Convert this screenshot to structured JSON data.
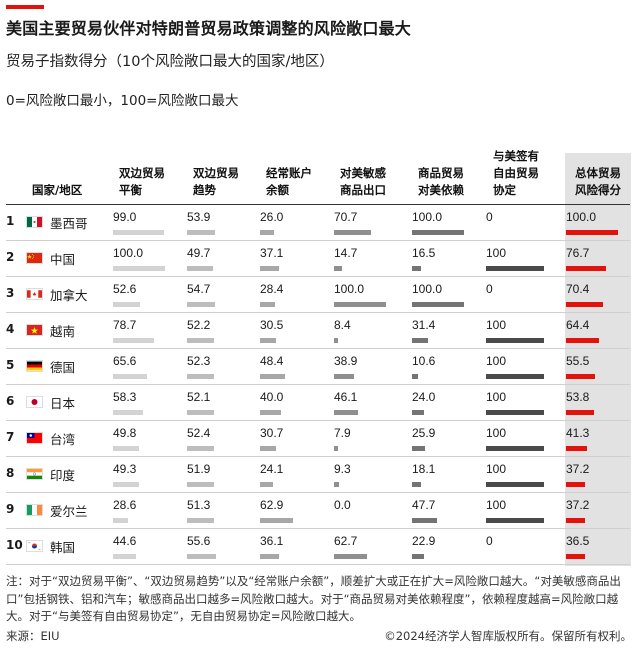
{
  "title": "美国主要贸易伙伴对特朗普贸易政策调整的风险敞口最大",
  "subtitle": "贸易子指数得分（10个风险敞口最大的国家/地区）",
  "scale_note": "0=风险敞口最小，100=风险敞口最大",
  "headers": {
    "country": "国家/地区",
    "c1": "双边贸易\n平衡",
    "c2": "双边贸易\n趋势",
    "c3": "经常账户\n余额",
    "c4": "对美敏感\n商品出口",
    "c5": "商品贸易\n对美依赖",
    "c6": "与美签有\n自由贸易\n协定",
    "c7": "总体贸易\n风险得分"
  },
  "colors": {
    "accent": "#e3120b",
    "bar_grey": [
      "#d3d3d3",
      "#bdbdbd",
      "#a7a7a7",
      "#8f8f8f",
      "#747474",
      "#4a4a4a",
      "#3a3a3a"
    ]
  },
  "chart_data": {
    "type": "table",
    "title": "美国主要贸易伙伴对特朗普贸易政策调整的风险敞口最大",
    "subtitle": "贸易子指数得分（10个风险敞口最大的国家/地区）",
    "scale": [
      0,
      100
    ],
    "columns": [
      "双边贸易平衡",
      "双边贸易趋势",
      "经常账户余额",
      "对美敏感商品出口",
      "商品贸易对美依赖",
      "与美签有自由贸易协定",
      "总体贸易风险得分"
    ],
    "rows": [
      {
        "rank": "1",
        "flag": "mexico-flag-icon",
        "name": "墨西哥",
        "values": [
          99.0,
          53.9,
          26.0,
          70.7,
          100.0,
          0,
          100.0
        ],
        "labels": [
          "99.0",
          "53.9",
          "26.0",
          "70.7",
          "100.0",
          "0",
          "100.0"
        ]
      },
      {
        "rank": "2",
        "flag": "china-flag-icon",
        "name": "中国",
        "values": [
          100.0,
          49.7,
          37.1,
          14.7,
          16.5,
          100,
          76.7
        ],
        "labels": [
          "100.0",
          "49.7",
          "37.1",
          "14.7",
          "16.5",
          "100",
          "76.7"
        ]
      },
      {
        "rank": "3",
        "flag": "canada-flag-icon",
        "name": "加拿大",
        "values": [
          52.6,
          54.7,
          28.4,
          100.0,
          100.0,
          0,
          70.4
        ],
        "labels": [
          "52.6",
          "54.7",
          "28.4",
          "100.0",
          "100.0",
          "0",
          "70.4"
        ]
      },
      {
        "rank": "4",
        "flag": "vietnam-flag-icon",
        "name": "越南",
        "values": [
          78.7,
          52.2,
          30.5,
          8.4,
          31.4,
          100,
          64.4
        ],
        "labels": [
          "78.7",
          "52.2",
          "30.5",
          "8.4",
          "31.4",
          "100",
          "64.4"
        ]
      },
      {
        "rank": "5",
        "flag": "germany-flag-icon",
        "name": "德国",
        "values": [
          65.6,
          52.3,
          48.4,
          38.9,
          10.6,
          100,
          55.5
        ],
        "labels": [
          "65.6",
          "52.3",
          "48.4",
          "38.9",
          "10.6",
          "100",
          "55.5"
        ]
      },
      {
        "rank": "6",
        "flag": "japan-flag-icon",
        "name": "日本",
        "values": [
          58.3,
          52.1,
          40.0,
          46.1,
          24.0,
          100,
          53.8
        ],
        "labels": [
          "58.3",
          "52.1",
          "40.0",
          "46.1",
          "24.0",
          "100",
          "53.8"
        ]
      },
      {
        "rank": "7",
        "flag": "taiwan-flag-icon",
        "name": "台湾",
        "values": [
          49.8,
          52.4,
          30.7,
          7.9,
          25.9,
          100,
          41.3
        ],
        "labels": [
          "49.8",
          "52.4",
          "30.7",
          "7.9",
          "25.9",
          "100",
          "41.3"
        ]
      },
      {
        "rank": "8",
        "flag": "india-flag-icon",
        "name": "印度",
        "values": [
          49.3,
          51.9,
          24.1,
          9.3,
          18.1,
          100,
          37.2
        ],
        "labels": [
          "49.3",
          "51.9",
          "24.1",
          "9.3",
          "18.1",
          "100",
          "37.2"
        ]
      },
      {
        "rank": "9",
        "flag": "ireland-flag-icon",
        "name": "爱尔兰",
        "values": [
          28.6,
          51.3,
          62.9,
          0.0,
          47.7,
          100,
          37.2
        ],
        "labels": [
          "28.6",
          "51.3",
          "62.9",
          "0.0",
          "47.7",
          "100",
          "37.2"
        ]
      },
      {
        "rank": "10",
        "flag": "south-korea-flag-icon",
        "name": "韩国",
        "values": [
          44.6,
          55.6,
          36.1,
          62.7,
          22.9,
          0,
          36.5
        ],
        "labels": [
          "44.6",
          "55.6",
          "36.1",
          "62.7",
          "22.9",
          "0",
          "36.5"
        ]
      }
    ]
  },
  "footnote": "注：对于“双边贸易平衡”、“双边贸易趋势”以及“经常账户余额”，顺差扩大或正在扩大=风险敞口越大。“对美敏感商品出口”包括钢铁、铝和汽车；敏感商品出口越多=风险敞口越大。对于“商品贸易对美依赖程度”，依赖程度越高=风险敞口越大。对于“与美签有自由贸易协定”，无自由贸易协定=风险敞口越大。",
  "source": "来源：EIU",
  "copyright": "©2024经济学人智库版权所有。保留所有权利。"
}
